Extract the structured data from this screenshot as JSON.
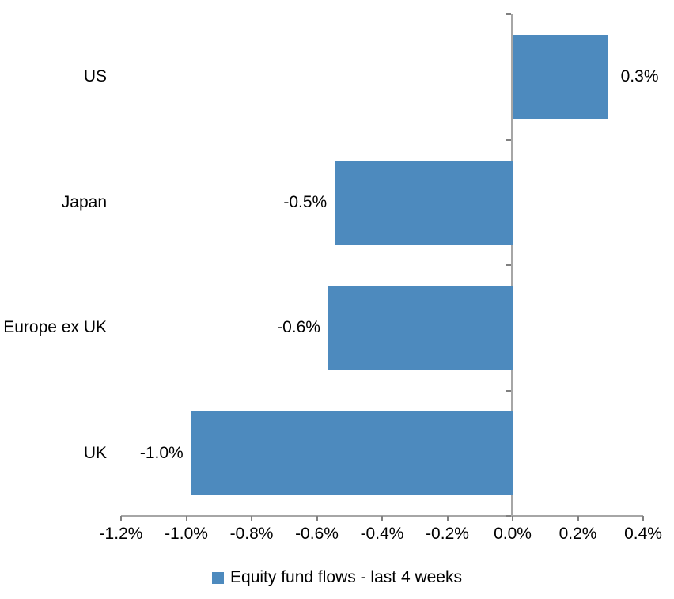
{
  "chart_data": {
    "type": "bar",
    "orientation": "horizontal",
    "categories": [
      "US",
      "Japan",
      "Europe ex UK",
      "UK"
    ],
    "series": [
      {
        "name": "Equity fund flows - last 4 weeks",
        "values": [
          0.3,
          -0.5,
          -0.6,
          -1.0
        ],
        "plotted_values": [
          0.29,
          -0.545,
          -0.565,
          -0.985
        ],
        "data_labels": [
          "0.3%",
          "-0.5%",
          "-0.6%",
          "-1.0%"
        ]
      }
    ],
    "xlabel": "",
    "ylabel": "",
    "xlim": [
      -1.2,
      0.4
    ],
    "x_tick_values": [
      -1.2,
      -1.0,
      -0.8,
      -0.6,
      -0.4,
      -0.2,
      0.0,
      0.2,
      0.4
    ],
    "x_tick_labels": [
      "-1.2%",
      "-1.0%",
      "-0.8%",
      "-0.6%",
      "-0.4%",
      "-0.2%",
      "0.0%",
      "0.2%",
      "0.4%"
    ],
    "grid": false,
    "legend_position": "bottom",
    "colors": {
      "bar": "#4D8ABE",
      "axis_line": "#A6A6A6",
      "tick": "#808080",
      "text": "#000000",
      "background": "#FFFFFF"
    }
  },
  "legend": {
    "items": [
      {
        "label": "Equity fund flows - last 4 weeks",
        "swatch_color": "#4D8ABE"
      }
    ]
  }
}
